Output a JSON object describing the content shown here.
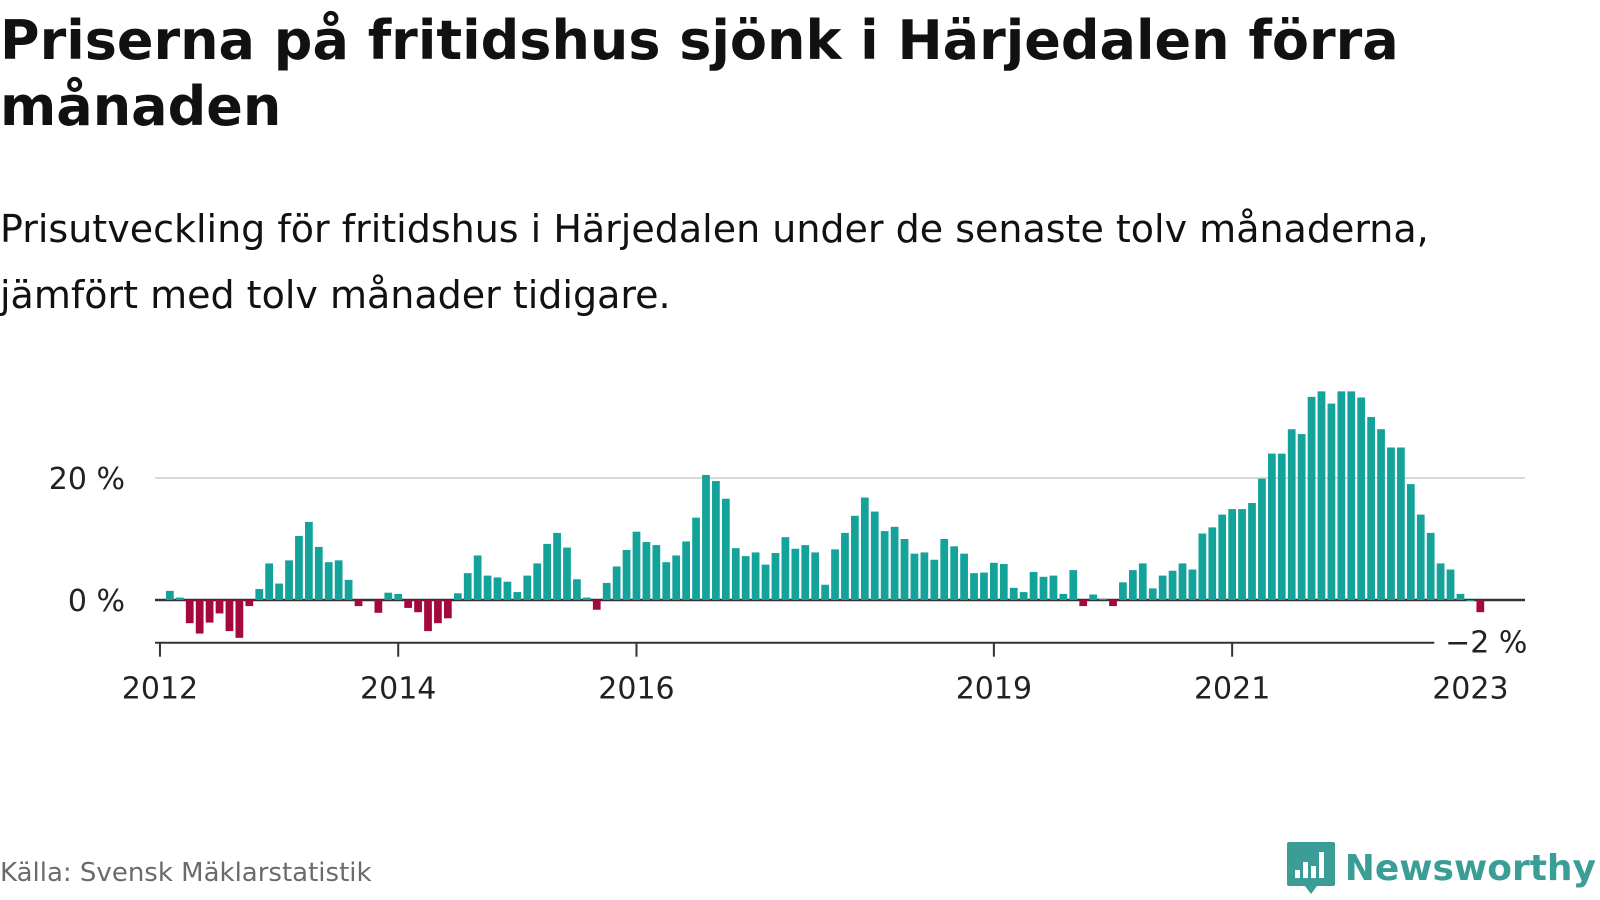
{
  "title": "Priserna på fritidshus sjönk i Härjedalen förra månaden",
  "subtitle": "Prisutveckling för fritidshus i Härjedalen under de senaste tolv månaderna, jämfört med tolv månader tidigare.",
  "source": "Källa: Svensk Mäklarstatistik",
  "brand": {
    "name": "Newsworthy",
    "color": "#3a9e96",
    "icon": "bar-chart-logo-icon"
  },
  "colors": {
    "positive": "#13a39a",
    "negative": "#a3093f",
    "gridline": "#d9d9d9",
    "zero_line": "#333333"
  },
  "chart_data": {
    "type": "bar",
    "title": "Priserna på fritidshus sjönk i Härjedalen förra månaden",
    "xlabel": "",
    "ylabel": "",
    "x_start": "2012-01",
    "x_end": "2023-06",
    "ylim": [
      -7,
      36
    ],
    "grid": "horizontal",
    "y_ticks": [
      {
        "value": 0,
        "label": "0 %"
      },
      {
        "value": 20,
        "label": "20 %"
      }
    ],
    "x_ticks": [
      {
        "date": "2012-01",
        "label": "2012"
      },
      {
        "date": "2014-01",
        "label": "2014"
      },
      {
        "date": "2016-01",
        "label": "2016"
      },
      {
        "date": "2019-01",
        "label": "2019"
      },
      {
        "date": "2021-01",
        "label": "2021"
      },
      {
        "date": "2023-01",
        "label": "2023"
      }
    ],
    "annotation": {
      "date": "2023-03",
      "label": "−2 %"
    },
    "series": [
      {
        "values": [
          [
            "2012-02",
            1.5
          ],
          [
            "2012-03",
            0.4
          ],
          [
            "2012-04",
            -3.8
          ],
          [
            "2012-05",
            -5.5
          ],
          [
            "2012-06",
            -3.7
          ],
          [
            "2012-07",
            -2.2
          ],
          [
            "2012-08",
            -5.1
          ],
          [
            "2012-09",
            -6.2
          ],
          [
            "2012-10",
            -1
          ],
          [
            "2012-11",
            1.8
          ],
          [
            "2012-12",
            6
          ],
          [
            "2013-01",
            2.7
          ],
          [
            "2013-02",
            6.5
          ],
          [
            "2013-03",
            10.5
          ],
          [
            "2013-04",
            12.8
          ],
          [
            "2013-05",
            8.7
          ],
          [
            "2013-06",
            6.2
          ],
          [
            "2013-07",
            6.5
          ],
          [
            "2013-08",
            3.3
          ],
          [
            "2013-09",
            -1
          ],
          [
            "2013-11",
            -2.1
          ],
          [
            "2013-12",
            1.2
          ],
          [
            "2014-01",
            1
          ],
          [
            "2014-02",
            -1.3
          ],
          [
            "2014-03",
            -2
          ],
          [
            "2014-04",
            -5.1
          ],
          [
            "2014-05",
            -3.8
          ],
          [
            "2014-06",
            -3
          ],
          [
            "2014-07",
            1.1
          ],
          [
            "2014-08",
            4.4
          ],
          [
            "2014-09",
            7.3
          ],
          [
            "2014-10",
            4
          ],
          [
            "2014-11",
            3.7
          ],
          [
            "2014-12",
            3
          ],
          [
            "2015-01",
            1.3
          ],
          [
            "2015-02",
            4
          ],
          [
            "2015-03",
            6
          ],
          [
            "2015-04",
            9.2
          ],
          [
            "2015-05",
            11
          ],
          [
            "2015-06",
            8.6
          ],
          [
            "2015-07",
            3.4
          ],
          [
            "2015-08",
            0.4
          ],
          [
            "2015-09",
            -1.6
          ],
          [
            "2015-10",
            2.8
          ],
          [
            "2015-11",
            5.5
          ],
          [
            "2015-12",
            8.2
          ],
          [
            "2016-01",
            11.2
          ],
          [
            "2016-02",
            9.5
          ],
          [
            "2016-03",
            9
          ],
          [
            "2016-04",
            6.2
          ],
          [
            "2016-05",
            7.3
          ],
          [
            "2016-06",
            9.6
          ],
          [
            "2016-07",
            13.5
          ],
          [
            "2016-08",
            20.5
          ],
          [
            "2016-09",
            19.5
          ],
          [
            "2016-10",
            16.6
          ],
          [
            "2016-11",
            8.5
          ],
          [
            "2016-12",
            7.2
          ],
          [
            "2017-01",
            7.8
          ],
          [
            "2017-02",
            5.8
          ],
          [
            "2017-03",
            7.7
          ],
          [
            "2017-04",
            10.3
          ],
          [
            "2017-05",
            8.4
          ],
          [
            "2017-06",
            9
          ],
          [
            "2017-07",
            7.8
          ],
          [
            "2017-08",
            2.5
          ],
          [
            "2017-09",
            8.3
          ],
          [
            "2017-10",
            11
          ],
          [
            "2017-11",
            13.8
          ],
          [
            "2017-12",
            16.8
          ],
          [
            "2018-01",
            14.5
          ],
          [
            "2018-02",
            11.3
          ],
          [
            "2018-03",
            12
          ],
          [
            "2018-04",
            10
          ],
          [
            "2018-05",
            7.6
          ],
          [
            "2018-06",
            7.8
          ],
          [
            "2018-07",
            6.6
          ],
          [
            "2018-08",
            10
          ],
          [
            "2018-09",
            8.8
          ],
          [
            "2018-10",
            7.6
          ],
          [
            "2018-11",
            4.4
          ],
          [
            "2018-12",
            4.5
          ],
          [
            "2019-01",
            6.1
          ],
          [
            "2019-02",
            5.9
          ],
          [
            "2019-03",
            2
          ],
          [
            "2019-04",
            1.3
          ],
          [
            "2019-05",
            4.6
          ],
          [
            "2019-06",
            3.8
          ],
          [
            "2019-07",
            4
          ],
          [
            "2019-08",
            1
          ],
          [
            "2019-09",
            4.9
          ],
          [
            "2019-10",
            -1
          ],
          [
            "2019-11",
            0.9
          ],
          [
            "2019-12",
            0.2
          ],
          [
            "2020-01",
            -1
          ],
          [
            "2020-02",
            2.9
          ],
          [
            "2020-03",
            4.9
          ],
          [
            "2020-04",
            6
          ],
          [
            "2020-05",
            1.9
          ],
          [
            "2020-06",
            4
          ],
          [
            "2020-07",
            4.8
          ],
          [
            "2020-08",
            6
          ],
          [
            "2020-09",
            5
          ],
          [
            "2020-10",
            10.9
          ],
          [
            "2020-11",
            11.9
          ],
          [
            "2020-12",
            14
          ],
          [
            "2021-01",
            14.9
          ],
          [
            "2021-02",
            14.9
          ],
          [
            "2021-03",
            15.9
          ],
          [
            "2021-04",
            19.9
          ],
          [
            "2021-05",
            24
          ],
          [
            "2021-06",
            24
          ],
          [
            "2021-07",
            28
          ],
          [
            "2021-08",
            27.2
          ],
          [
            "2021-09",
            33.3
          ],
          [
            "2021-10",
            34.2
          ],
          [
            "2021-11",
            32.2
          ],
          [
            "2021-12",
            34.2
          ],
          [
            "2022-01",
            34.2
          ],
          [
            "2022-02",
            33.2
          ],
          [
            "2022-03",
            30
          ],
          [
            "2022-04",
            28
          ],
          [
            "2022-05",
            25
          ],
          [
            "2022-06",
            25
          ],
          [
            "2022-07",
            19
          ],
          [
            "2022-08",
            14
          ],
          [
            "2022-09",
            11
          ],
          [
            "2022-10",
            6
          ],
          [
            "2022-11",
            5
          ],
          [
            "2022-12",
            1
          ],
          [
            "2023-01",
            0
          ],
          [
            "2023-02",
            -2
          ]
        ]
      }
    ]
  }
}
